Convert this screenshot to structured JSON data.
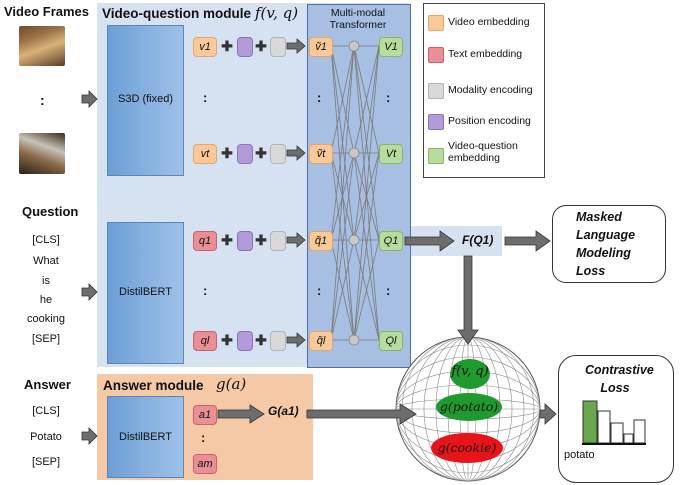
{
  "video_frames": {
    "title": "Video Frames",
    "ellipsis": ":"
  },
  "question": {
    "title": "Question",
    "tokens": [
      "[CLS]",
      "What",
      "is",
      "he",
      "cooking",
      "[SEP]"
    ]
  },
  "answer": {
    "title": "Answer",
    "tokens": [
      "[CLS]",
      "Potato",
      "[SEP]"
    ]
  },
  "vq_module": {
    "title": "Video-question module",
    "title_formula": "f(v, q)",
    "encoder_video": "S3D (fixed)",
    "encoder_text": "DistilBERT",
    "transformer_label": "Multi-modal Transformer",
    "video_inputs": [
      "v1",
      "vt"
    ],
    "text_inputs": [
      "q1",
      "ql"
    ],
    "embedded_video": [
      "ṽ1",
      "ṽt"
    ],
    "embedded_text": [
      "q̃1",
      "q̃l"
    ],
    "outputs_video": [
      "V1",
      "Vt"
    ],
    "outputs_text": [
      "Q1",
      "Ql"
    ],
    "ellipsis": ":"
  },
  "answer_module": {
    "title": "Answer module",
    "title_formula": "g(a)",
    "encoder": "DistilBERT",
    "tokens": [
      "a1",
      "am"
    ],
    "output": "G(a1)"
  },
  "fq1": "F(Q1)",
  "mlm_loss": "Masked Language Modeling Loss",
  "contrastive": {
    "title": "Contrastive Loss",
    "bar_label": "potato"
  },
  "sphere_labels": [
    "f(v, q)",
    "g(potato)",
    "g(cookie)"
  ],
  "legend": [
    {
      "label": "Video embedding",
      "color": "#f9c99a"
    },
    {
      "label": "Text embedding",
      "color": "#ea8f96"
    },
    {
      "label": "Modality encoding",
      "color": "#d9d9d9"
    },
    {
      "label": "Position encoding",
      "color": "#b39ad9"
    },
    {
      "label": "Video-question embedding",
      "color": "#b8dc9d"
    }
  ]
}
